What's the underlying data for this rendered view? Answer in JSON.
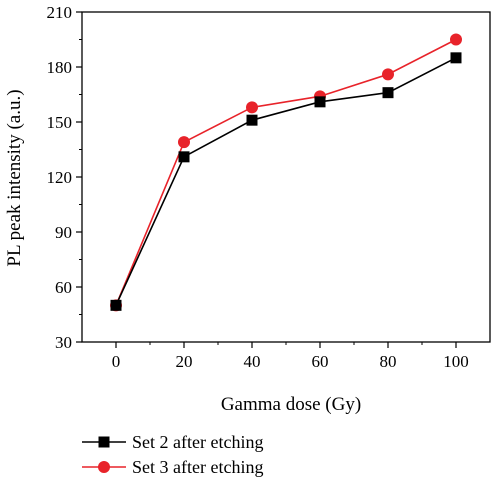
{
  "chart_data": {
    "type": "line",
    "title": "",
    "xlabel": "Gamma dose (Gy)",
    "ylabel": "PL peak intensity (a.u.)",
    "xlim": [
      -10,
      110
    ],
    "ylim": [
      30,
      210
    ],
    "xticks": [
      0,
      20,
      40,
      60,
      80,
      100
    ],
    "yticks": [
      30,
      60,
      90,
      120,
      150,
      180,
      210
    ],
    "grid": false,
    "legend_position": "bottom-left, below plot",
    "x": [
      0,
      20,
      40,
      60,
      80,
      100
    ],
    "series": [
      {
        "name": "Set 2 after etching",
        "marker": "square",
        "color": "#000000",
        "values": [
          50,
          131,
          151,
          161,
          166,
          185
        ]
      },
      {
        "name": "Set 3 after etching",
        "marker": "circle",
        "color": "#e8232a",
        "values": [
          50,
          139,
          158,
          164,
          176,
          195
        ]
      }
    ]
  }
}
